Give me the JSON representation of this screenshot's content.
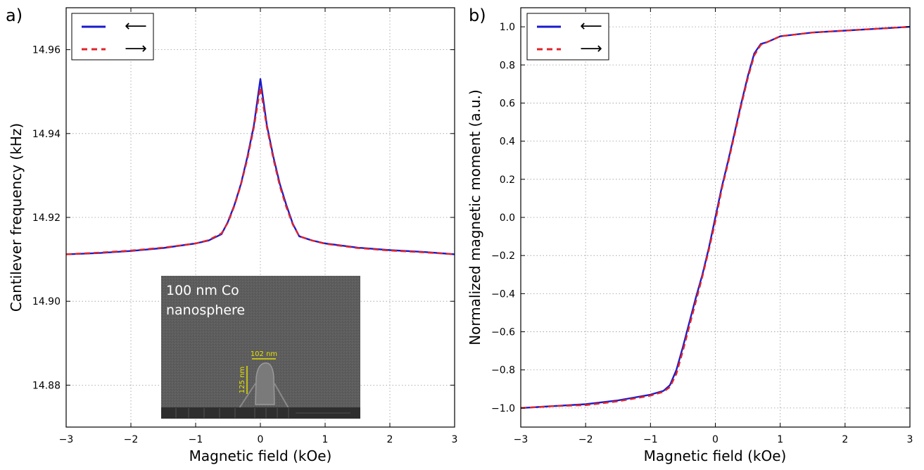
{
  "chart_data": [
    {
      "type": "line",
      "panel_label": "a)",
      "xlabel": "Magnetic field (kOe)",
      "ylabel": "Cantilever frequency (kHz)",
      "xlim": [
        -3,
        3
      ],
      "ylim": [
        14.87,
        14.97
      ],
      "xticks": [
        -3,
        -2,
        -1,
        0,
        1,
        2,
        3
      ],
      "yticks": [
        14.88,
        14.9,
        14.92,
        14.94,
        14.96
      ],
      "ytick_labels": [
        "14.88",
        "14.90",
        "14.92",
        "14.94",
        "14.96"
      ],
      "grid": true,
      "legend_placement": "top-left",
      "series": [
        {
          "legend": "⟵",
          "color": "#1a1acc",
          "style": "solid",
          "x": [
            -3,
            -2.5,
            -2,
            -1.5,
            -1,
            -0.8,
            -0.6,
            -0.5,
            -0.4,
            -0.3,
            -0.2,
            -0.1,
            0,
            0.1,
            0.2,
            0.3,
            0.4,
            0.5,
            0.6,
            0.8,
            1,
            1.5,
            2,
            2.5,
            3
          ],
          "y": [
            14.9112,
            14.9115,
            14.912,
            14.9127,
            14.9138,
            14.9145,
            14.916,
            14.919,
            14.923,
            14.928,
            14.9345,
            14.942,
            14.953,
            14.942,
            14.9345,
            14.928,
            14.923,
            14.9185,
            14.9155,
            14.9145,
            14.9138,
            14.9128,
            14.9122,
            14.9118,
            14.9112
          ]
        },
        {
          "legend": "⟶",
          "color": "#e0242a",
          "style": "dashed",
          "x": [
            -3,
            -2.5,
            -2,
            -1.5,
            -1,
            -0.8,
            -0.6,
            -0.5,
            -0.4,
            -0.3,
            -0.2,
            -0.1,
            0,
            0.1,
            0.2,
            0.3,
            0.4,
            0.5,
            0.6,
            0.8,
            1,
            1.5,
            2,
            2.5,
            3
          ],
          "y": [
            14.9112,
            14.9116,
            14.9121,
            14.9128,
            14.9138,
            14.9146,
            14.9162,
            14.9188,
            14.9228,
            14.9278,
            14.934,
            14.9415,
            14.951,
            14.9415,
            14.934,
            14.9275,
            14.9225,
            14.9183,
            14.9155,
            14.9145,
            14.9137,
            14.9127,
            14.9121,
            14.9117,
            14.9112
          ]
        }
      ],
      "inset": {
        "title_lines": [
          "100 nm Co",
          "nanosphere"
        ],
        "scale_labels": [
          "102 nm",
          "125 nm"
        ]
      }
    },
    {
      "type": "line",
      "panel_label": "b)",
      "xlabel": "Magnetic field (kOe)",
      "ylabel": "Normalized magnetic moment (a.u.)",
      "xlim": [
        -3,
        3
      ],
      "ylim": [
        -1.1,
        1.1
      ],
      "xticks": [
        -3,
        -2,
        -1,
        0,
        1,
        2,
        3
      ],
      "yticks": [
        -1.0,
        -0.8,
        -0.6,
        -0.4,
        -0.2,
        0.0,
        0.2,
        0.4,
        0.6,
        0.8,
        1.0
      ],
      "ytick_labels": [
        "−1.0",
        "−0.8",
        "−0.6",
        "−0.4",
        "−0.2",
        "0.0",
        "0.2",
        "0.4",
        "0.6",
        "0.8",
        "1.0"
      ],
      "grid": true,
      "legend_placement": "top-left",
      "series": [
        {
          "legend": "⟵",
          "color": "#1a1acc",
          "style": "solid",
          "x": [
            -3,
            -2.5,
            -2,
            -1.5,
            -1,
            -0.8,
            -0.7,
            -0.6,
            -0.5,
            -0.4,
            -0.3,
            -0.2,
            -0.1,
            0,
            0.1,
            0.2,
            0.3,
            0.4,
            0.5,
            0.6,
            0.7,
            0.8,
            1,
            1.5,
            2,
            2.5,
            3
          ],
          "y": [
            -1.0,
            -0.99,
            -0.98,
            -0.96,
            -0.93,
            -0.91,
            -0.88,
            -0.8,
            -0.68,
            -0.55,
            -0.42,
            -0.3,
            -0.16,
            0.0,
            0.16,
            0.3,
            0.45,
            0.6,
            0.74,
            0.86,
            0.91,
            0.92,
            0.95,
            0.97,
            0.98,
            0.99,
            1.0
          ]
        },
        {
          "legend": "⟶",
          "color": "#e0242a",
          "style": "dashed",
          "x": [
            -3,
            -2.5,
            -2,
            -1.5,
            -1,
            -0.8,
            -0.7,
            -0.6,
            -0.5,
            -0.4,
            -0.3,
            -0.2,
            -0.1,
            0,
            0.1,
            0.2,
            0.3,
            0.4,
            0.5,
            0.6,
            0.7,
            0.8,
            1,
            1.5,
            2,
            2.5,
            3
          ],
          "y": [
            -1.0,
            -0.99,
            -0.985,
            -0.965,
            -0.935,
            -0.915,
            -0.89,
            -0.82,
            -0.7,
            -0.57,
            -0.44,
            -0.31,
            -0.17,
            -0.02,
            0.15,
            0.29,
            0.44,
            0.59,
            0.73,
            0.85,
            0.905,
            0.92,
            0.95,
            0.97,
            0.98,
            0.99,
            1.0
          ]
        }
      ]
    }
  ]
}
